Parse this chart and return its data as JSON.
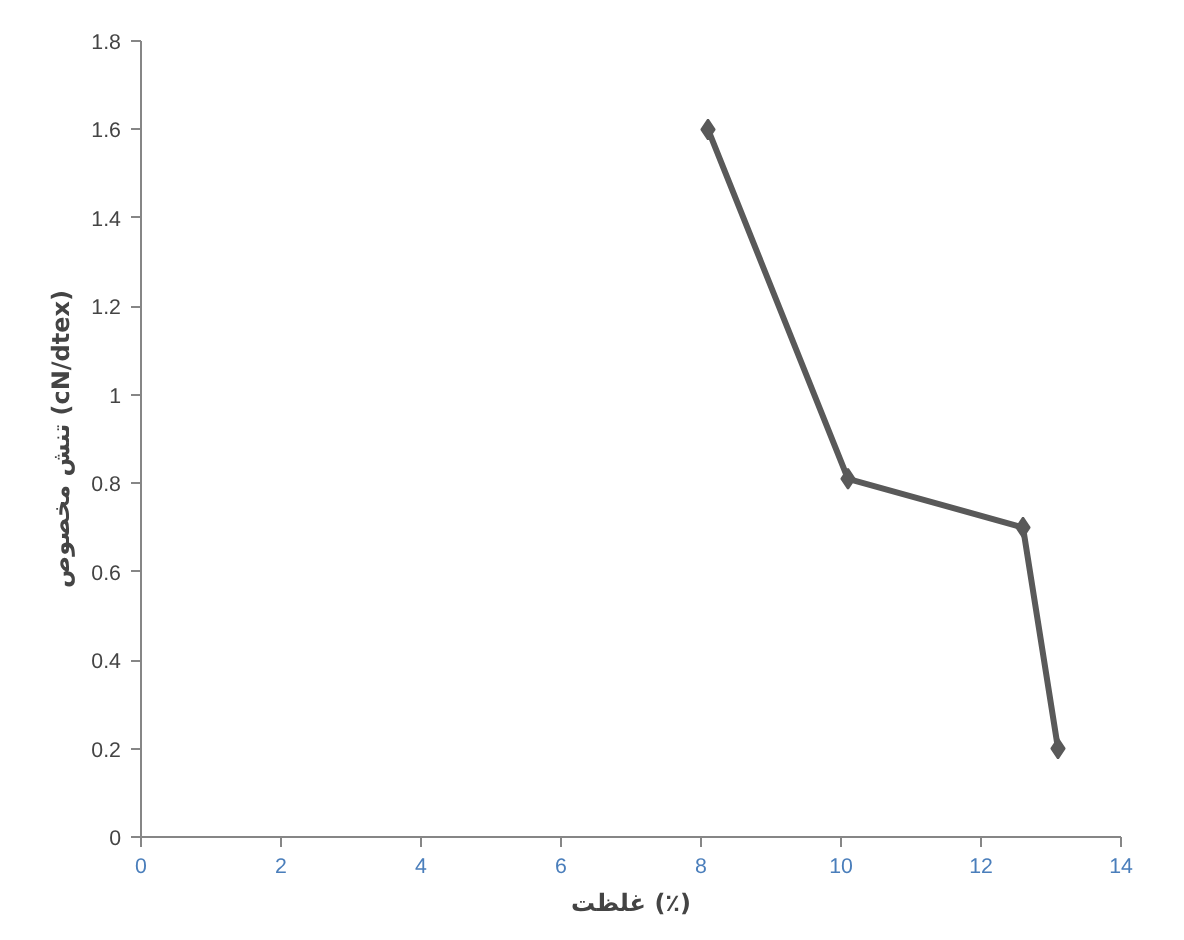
{
  "chart_data": {
    "type": "line",
    "xlabel": "غلظت (٪)",
    "ylabel": "تنش مخصوص (cN/dtex)",
    "x": [
      8.1,
      10.1,
      12.6,
      13.1
    ],
    "series": [
      {
        "color": "#595959",
        "values": [
          1.6,
          0.81,
          0.7,
          0.2
        ]
      }
    ],
    "xlim": [
      0,
      14
    ],
    "xticks": [
      0,
      2,
      4,
      6,
      8,
      10,
      12,
      14
    ],
    "ylim": [
      0,
      1.8
    ],
    "yticks": [
      0,
      0.2,
      0.4,
      0.6,
      0.8,
      1,
      1.2,
      1.4,
      1.6,
      1.8
    ],
    "grid": false,
    "marker": "diamond",
    "line_style": "solid"
  }
}
